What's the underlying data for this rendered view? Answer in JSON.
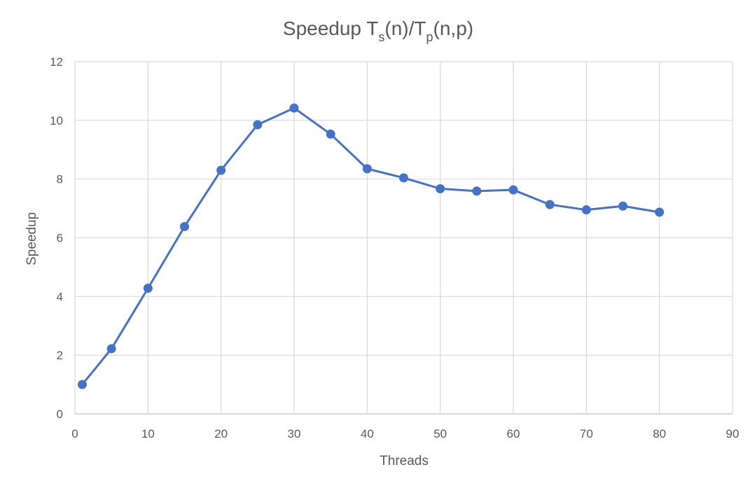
{
  "chart_data": {
    "type": "line",
    "title": {
      "main": "Speedup T",
      "sub1": "s",
      "mid": "(n)/T",
      "sub2": "p",
      "end": "(n,p)"
    },
    "xlabel": "Threads",
    "ylabel": "Speedup",
    "xlim": [
      0,
      90
    ],
    "ylim": [
      0,
      12
    ],
    "xticks": [
      0,
      10,
      20,
      30,
      40,
      50,
      60,
      70,
      80,
      90
    ],
    "yticks": [
      0,
      2,
      4,
      6,
      8,
      10,
      12
    ],
    "grid": true,
    "legend": "none",
    "series": [
      {
        "color": "#4472c4",
        "x": [
          1,
          5,
          10,
          15,
          20,
          25,
          30,
          35,
          40,
          45,
          50,
          55,
          60,
          65,
          70,
          75,
          80
        ],
        "values": [
          1.0,
          2.22,
          4.28,
          6.38,
          8.3,
          9.85,
          10.42,
          9.53,
          8.35,
          8.04,
          7.67,
          7.59,
          7.63,
          7.13,
          6.95,
          7.08,
          6.87
        ]
      }
    ]
  }
}
